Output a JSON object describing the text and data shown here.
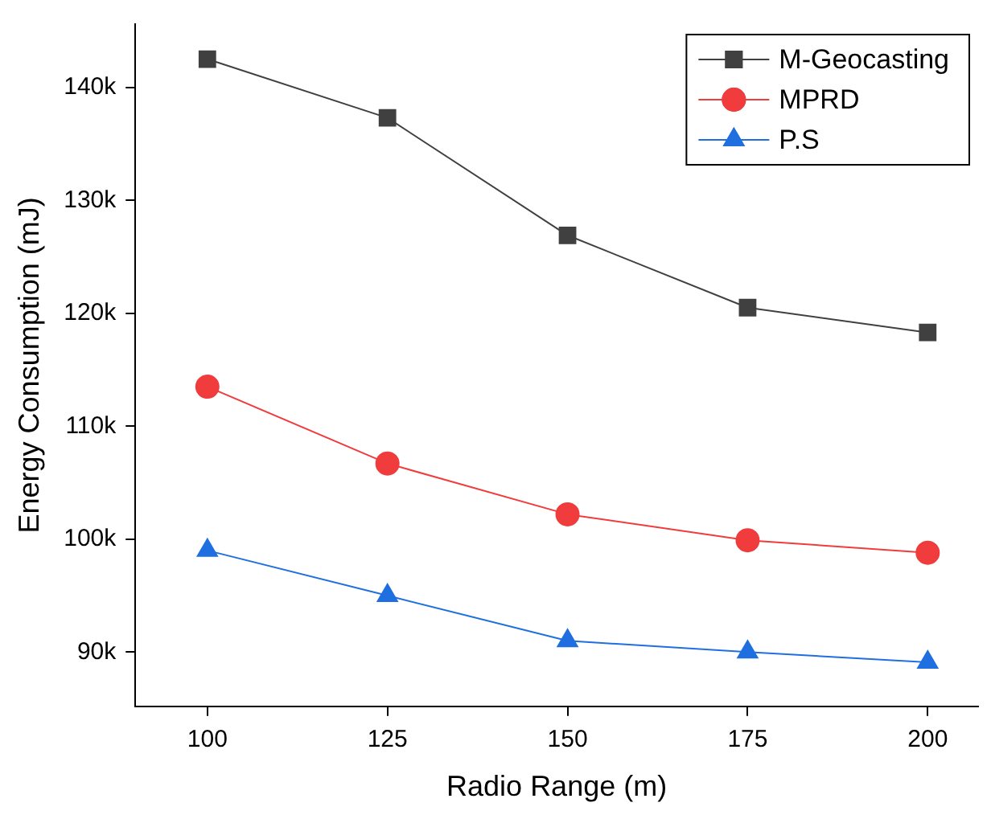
{
  "chart_data": {
    "type": "line",
    "xlabel": "Radio Range (m)",
    "ylabel": "Energy Consumption (mJ)",
    "x": [
      100,
      125,
      150,
      175,
      200
    ],
    "series": [
      {
        "name": "M-Geocasting",
        "color": "#404040",
        "marker": "square",
        "values": [
          142500,
          137300,
          126900,
          120500,
          118300
        ]
      },
      {
        "name": "MPRD",
        "color": "#f03c3c",
        "marker": "circle",
        "values": [
          113500,
          106700,
          102200,
          99900,
          98800
        ]
      },
      {
        "name": "P.S",
        "color": "#1f6fe0",
        "marker": "triangle",
        "values": [
          99000,
          95000,
          91000,
          90000,
          89100
        ]
      }
    ],
    "xlim": [
      90,
      207
    ],
    "xticks": [
      100,
      125,
      150,
      175,
      200
    ],
    "ylim": [
      85200,
      145600
    ],
    "yticks": [
      {
        "value": 90000,
        "label": "90k"
      },
      {
        "value": 100000,
        "label": "100k"
      },
      {
        "value": 110000,
        "label": "110k"
      },
      {
        "value": 120000,
        "label": "120k"
      },
      {
        "value": 130000,
        "label": "130k"
      },
      {
        "value": 140000,
        "label": "140k"
      }
    ],
    "grid": false,
    "legend": "top right",
    "line_style": "solid"
  }
}
